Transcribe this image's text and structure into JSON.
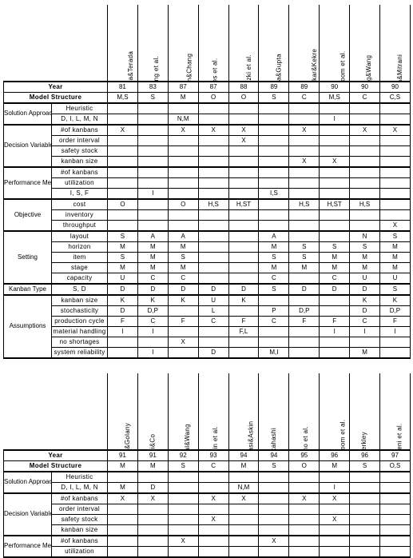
{
  "tables": [
    {
      "authors": [
        "Kimura&Terada",
        "Huang et al.",
        "Bitran&Chang",
        "Rees et al.",
        "Miyazki et al.",
        "Gupta&Gupta",
        "Karmakar&Kekre",
        "Philipoom et al.",
        "Wang&Wang",
        "Mitra&Mitrani"
      ],
      "year": [
        "81",
        "83",
        "87",
        "87",
        "88",
        "89",
        "89",
        "90",
        "90",
        "90"
      ],
      "model": [
        "M,S",
        "S",
        "M",
        "O",
        "O",
        "S",
        "C",
        "M,S",
        "C",
        "C,S"
      ],
      "categories": [
        {
          "name": "Solution Approach",
          "rows": [
            {
              "label": "Heuristic",
              "vals": [
                "",
                "",
                "",
                "",
                "",
                "",
                "",
                "",
                "",
                ""
              ]
            },
            {
              "label": "D, I, L, M, N",
              "vals": [
                "",
                "",
                "N,M",
                "",
                "",
                "",
                "",
                "I",
                "",
                ""
              ]
            }
          ]
        },
        {
          "name": "Decision Variables",
          "rows": [
            {
              "label": "#of kanbans",
              "vals": [
                "X",
                "",
                "X",
                "X",
                "X",
                "",
                "X",
                "",
                "X",
                "X"
              ]
            },
            {
              "label": "order interval",
              "vals": [
                "",
                "",
                "",
                "",
                "X",
                "",
                "",
                "",
                "",
                ""
              ]
            },
            {
              "label": "safety stock",
              "vals": [
                "",
                "",
                "",
                "",
                "",
                "",
                "",
                "",
                "",
                ""
              ]
            },
            {
              "label": "kanban size",
              "vals": [
                "",
                "",
                "",
                "",
                "",
                "",
                "X",
                "X",
                "",
                ""
              ]
            }
          ]
        },
        {
          "name": "Performance Measures",
          "rows": [
            {
              "label": "#of kanbans",
              "vals": [
                "",
                "",
                "",
                "",
                "",
                "",
                "",
                "",
                "",
                ""
              ]
            },
            {
              "label": "utilization",
              "vals": [
                "",
                "",
                "",
                "",
                "",
                "",
                "",
                "",
                "",
                ""
              ]
            },
            {
              "label": "I, S, F",
              "vals": [
                "",
                "I",
                "",
                "",
                "",
                "I,S",
                "",
                "",
                "",
                ""
              ]
            }
          ]
        },
        {
          "name": "Objective",
          "rows": [
            {
              "label": "cost",
              "vals": [
                "O",
                "",
                "O",
                "H,S",
                "H,ST",
                "",
                "H,S",
                "H,ST",
                "H,S",
                ""
              ]
            },
            {
              "label": "inventory",
              "vals": [
                "",
                "",
                "",
                "",
                "",
                "",
                "",
                "",
                "",
                ""
              ]
            },
            {
              "label": "throughput",
              "vals": [
                "",
                "",
                "",
                "",
                "",
                "",
                "",
                "",
                "",
                "X"
              ]
            }
          ]
        },
        {
          "name": "Setting",
          "rows": [
            {
              "label": "layout",
              "vals": [
                "S",
                "A",
                "A",
                "",
                "",
                "A",
                "",
                "",
                "N",
                "S"
              ]
            },
            {
              "label": "horizon",
              "vals": [
                "M",
                "M",
                "M",
                "",
                "",
                "M",
                "S",
                "S",
                "S",
                "M"
              ]
            },
            {
              "label": "item",
              "vals": [
                "S",
                "M",
                "S",
                "",
                "",
                "S",
                "S",
                "M",
                "M",
                "M"
              ]
            },
            {
              "label": "stage",
              "vals": [
                "M",
                "M",
                "M",
                "",
                "",
                "M",
                "M",
                "M",
                "M",
                "M"
              ]
            },
            {
              "label": "capacity",
              "vals": [
                "U",
                "C",
                "C",
                "",
                "",
                "C",
                "",
                "C",
                "U",
                "U"
              ]
            }
          ]
        },
        {
          "name": "Kanban Type",
          "rows": [
            {
              "label": "S, D",
              "vals": [
                "D",
                "D",
                "D",
                "D",
                "D",
                "S",
                "D",
                "D",
                "D",
                "S"
              ]
            }
          ]
        },
        {
          "name": "Assumptions",
          "rows": [
            {
              "label": "kanban size",
              "vals": [
                "K",
                "K",
                "K",
                "U",
                "K",
                "",
                "",
                "",
                "K",
                "K"
              ]
            },
            {
              "label": "stochasticity",
              "vals": [
                "D",
                "D,P",
                "",
                "L",
                "",
                "P",
                "D,P",
                "",
                "D",
                "D,P"
              ]
            },
            {
              "label": "production cycle",
              "vals": [
                "F",
                "C",
                "F",
                "C",
                "F",
                "C",
                "F",
                "F",
                "C",
                "F"
              ]
            },
            {
              "label": "material handling",
              "vals": [
                "I",
                "I",
                "",
                "",
                "F,L",
                "",
                "",
                "I",
                "I",
                "I"
              ]
            },
            {
              "label": "no shortages",
              "vals": [
                "",
                "",
                "X",
                "",
                "",
                "",
                "",
                "",
                "",
                ""
              ]
            },
            {
              "label": "system reliability",
              "vals": [
                "",
                "I",
                "",
                "D",
                "",
                "M,I",
                "",
                "",
                "M",
                ""
              ]
            }
          ]
        }
      ]
    },
    {
      "authors": [
        "Bard&Golany",
        "Li&Co",
        "Mittal&Wang",
        "Askin et al.",
        "Mitwasi&Askin",
        "Takahashi",
        "Ohno et al.",
        "Philipoom et al.",
        "Berkley",
        "Moeeni et al."
      ],
      "year": [
        "91",
        "91",
        "92",
        "93",
        "94",
        "94",
        "95",
        "96",
        "96",
        "97"
      ],
      "model": [
        "M",
        "M",
        "S",
        "C",
        "M",
        "S",
        "O",
        "M",
        "S",
        "O,S"
      ],
      "categories": [
        {
          "name": "Solution Approach",
          "rows": [
            {
              "label": "Heuristic",
              "vals": [
                "",
                "",
                "",
                "",
                "",
                "",
                "",
                "",
                "",
                ""
              ]
            },
            {
              "label": "D, I, L, M, N",
              "vals": [
                "M",
                "D",
                "",
                "",
                "N,M",
                "",
                "",
                "I",
                "",
                ""
              ]
            }
          ]
        },
        {
          "name": "Decision Variables",
          "rows": [
            {
              "label": "#of kanbans",
              "vals": [
                "X",
                "X",
                "",
                "X",
                "X",
                "",
                "X",
                "X",
                "",
                ""
              ]
            },
            {
              "label": "order interval",
              "vals": [
                "",
                "",
                "",
                "",
                "",
                "",
                "",
                "",
                "",
                ""
              ]
            },
            {
              "label": "safety stock",
              "vals": [
                "",
                "",
                "",
                "X",
                "",
                "",
                "",
                "X",
                "",
                ""
              ]
            },
            {
              "label": "kanban size",
              "vals": [
                "",
                "",
                "",
                "",
                "",
                "",
                "",
                "",
                "",
                ""
              ]
            }
          ]
        },
        {
          "name": "Performance Measures",
          "rows": [
            {
              "label": "#of kanbans",
              "vals": [
                "",
                "",
                "X",
                "",
                "",
                "X",
                "",
                "",
                "",
                ""
              ]
            },
            {
              "label": "utilization",
              "vals": [
                "",
                "",
                "",
                "",
                "",
                "",
                "",
                "",
                "",
                ""
              ]
            }
          ]
        }
      ]
    }
  ]
}
